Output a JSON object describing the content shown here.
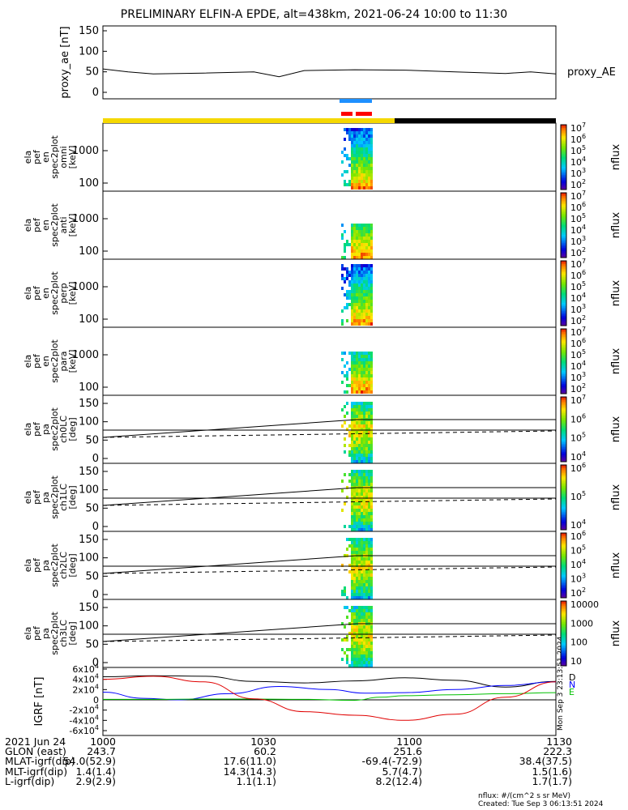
{
  "title": "PRELIMINARY ELFIN-A EPDE, alt=438km, 2021-06-24 10:00 to 11:30",
  "colors": {
    "yellow_bar": "#f5d800",
    "black_bar": "#000000",
    "blue_bar": "#1e90ff",
    "red_bar": "#ff0000"
  },
  "chart_data": [
    {
      "type": "line",
      "id": "proxy_ae",
      "ylabel": "proxy_ae [nT]",
      "legend": "proxy_AE",
      "ylim": [
        0,
        150
      ],
      "yticks": [
        "0",
        "50",
        "100",
        "150"
      ],
      "x_minutes": [
        0,
        5,
        10,
        20,
        30,
        35,
        40,
        50,
        60,
        70,
        80,
        85,
        88,
        90
      ],
      "values": [
        57,
        50,
        45,
        47,
        50,
        38,
        53,
        55,
        54,
        50,
        46,
        50,
        47,
        45
      ]
    },
    {
      "type": "heatmap",
      "id": "pef_en_spec2plot_omni",
      "ylabel_lines": [
        "ela",
        "pef",
        "en",
        "spec2plot",
        "omni",
        "[keV]"
      ],
      "yticks": [
        "100",
        "1000"
      ],
      "zlabel": "nflux",
      "zticks": [
        "10^2",
        "10^3",
        "10^4",
        "10^5",
        "10^6",
        "10^7"
      ]
    },
    {
      "type": "heatmap",
      "id": "pef_en_spec2plot_anti",
      "ylabel_lines": [
        "ela",
        "pef",
        "en",
        "spec2plot",
        "anti",
        "[keV]"
      ],
      "yticks": [
        "100",
        "1000"
      ],
      "zlabel": "nflux",
      "zticks": [
        "10^2",
        "10^3",
        "10^4",
        "10^5",
        "10^6",
        "10^7"
      ]
    },
    {
      "type": "heatmap",
      "id": "pef_en_spec2plot_perp",
      "ylabel_lines": [
        "ela",
        "pef",
        "en",
        "spec2plot",
        "perp",
        "[keV]"
      ],
      "yticks": [
        "100",
        "1000"
      ],
      "zlabel": "nflux",
      "zticks": [
        "10^2",
        "10^3",
        "10^4",
        "10^5",
        "10^6",
        "10^7"
      ]
    },
    {
      "type": "heatmap",
      "id": "pef_en_spec2plot_para",
      "ylabel_lines": [
        "ela",
        "pef",
        "en",
        "spec2plot",
        "para",
        "[keV]"
      ],
      "yticks": [
        "100",
        "1000"
      ],
      "zlabel": "nflux",
      "zticks": [
        "10^2",
        "10^3",
        "10^4",
        "10^5",
        "10^6",
        "10^7"
      ]
    },
    {
      "type": "heatmap",
      "id": "pef_pa_spec2plot_ch0LC",
      "ylabel_lines": [
        "ela",
        "pef",
        "pa",
        "spec2plot",
        "ch0LC",
        "[deg]"
      ],
      "yticks": [
        "0",
        "50",
        "100",
        "150"
      ],
      "zlabel": "nflux",
      "zticks": [
        "10^4",
        "10^5",
        "10^6",
        "10^7"
      ]
    },
    {
      "type": "heatmap",
      "id": "pef_pa_spec2plot_ch1LC",
      "ylabel_lines": [
        "ela",
        "pef",
        "pa",
        "spec2plot",
        "ch1LC",
        "[deg]"
      ],
      "yticks": [
        "0",
        "50",
        "100",
        "150"
      ],
      "zlabel": "nflux",
      "zticks": [
        "10^4",
        "10^5",
        "10^6"
      ]
    },
    {
      "type": "heatmap",
      "id": "pef_pa_spec2plot_ch2LC",
      "ylabel_lines": [
        "ela",
        "pef",
        "pa",
        "spec2plot",
        "ch2LC",
        "[deg]"
      ],
      "yticks": [
        "0",
        "50",
        "100",
        "150"
      ],
      "zlabel": "nflux",
      "zticks": [
        "10^2",
        "10^3",
        "10^4",
        "10^5",
        "10^6"
      ]
    },
    {
      "type": "heatmap",
      "id": "pef_pa_spec2plot_ch3LC",
      "ylabel_lines": [
        "ela",
        "pef",
        "pa",
        "spec2plot",
        "ch3LC",
        "[deg]"
      ],
      "yticks": [
        "0",
        "50",
        "100",
        "150"
      ],
      "zlabel": "nflux",
      "zticks": [
        "10",
        "100",
        "1000",
        "10000"
      ]
    },
    {
      "type": "line",
      "id": "igrf",
      "ylabel": "IGRF [nT]",
      "ylim": [
        -60000,
        60000
      ],
      "yticks": [
        "-6x10^4",
        "-4x10^4",
        "-2x10^4",
        "0",
        "2x10^4",
        "4x10^4",
        "6x10^4"
      ],
      "series": [
        {
          "name": "D",
          "color": "#000000",
          "x_minutes": [
            0,
            10,
            20,
            30,
            40,
            50,
            60,
            70,
            80,
            90
          ],
          "values": [
            45000,
            47000,
            46000,
            36000,
            33000,
            37000,
            43000,
            38000,
            25000,
            36000
          ]
        },
        {
          "name": "N",
          "color": "#0000ff",
          "x_minutes": [
            0,
            8,
            15,
            25,
            35,
            45,
            52,
            60,
            70,
            80,
            90
          ],
          "values": [
            15000,
            3000,
            0,
            12000,
            26000,
            20000,
            13000,
            14000,
            20000,
            28000,
            35000
          ]
        },
        {
          "name": "E",
          "color": "#00c000",
          "x_minutes": [
            0,
            10,
            20,
            30,
            40,
            50,
            55,
            60,
            70,
            80,
            90
          ],
          "values": [
            1000,
            1000,
            1500,
            1500,
            1000,
            -1000,
            5000,
            8000,
            10000,
            12000,
            14000
          ]
        },
        {
          "name": "",
          "color": "#e00000",
          "x_minutes": [
            0,
            10,
            20,
            30,
            40,
            50,
            60,
            70,
            80,
            90
          ],
          "values": [
            40000,
            46000,
            35000,
            2000,
            -23000,
            -30000,
            -40000,
            -28000,
            5000,
            35000
          ]
        }
      ]
    }
  ],
  "x_axis": {
    "tick_labels": [
      "1000",
      "1030",
      "1100",
      "1130"
    ],
    "rows": [
      {
        "label": "2021 Jun 24",
        "values": [
          "1000",
          "1030",
          "1100",
          "1130"
        ]
      },
      {
        "label": "GLON (east)",
        "values": [
          "243.7",
          "60.2",
          "251.6",
          "222.3"
        ]
      },
      {
        "label": "MLAT-igrf(dip)",
        "values": [
          "54.0(52.9)",
          "17.6(11.0)",
          "-69.4(-72.9)",
          "38.4(37.5)"
        ]
      },
      {
        "label": "MLT-igrf(dip)",
        "values": [
          "1.4(1.4)",
          "14.3(14.3)",
          "5.7(4.7)",
          "1.5(1.6)"
        ]
      },
      {
        "label": "L-igrf(dip)",
        "values": [
          "2.9(2.9)",
          "1.1(1.1)",
          "8.2(12.4)",
          "1.7(1.7)"
        ]
      }
    ]
  },
  "footer": {
    "units": "nflux: #/(cm^2 s sr MeV)",
    "created": "Created: Tue Sep  3 06:13:51 2024"
  },
  "side_stamp": "Mon Sep  3 23:13:51 2024"
}
